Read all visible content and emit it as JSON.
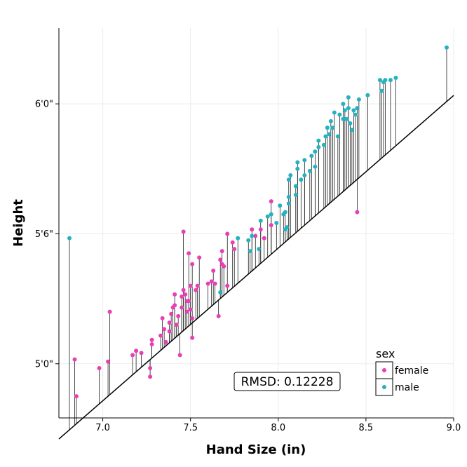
{
  "chart_data": {
    "type": "scatter",
    "xlabel": "Hand Size (in)",
    "ylabel": "Height",
    "xlim": [
      6.75,
      9.0
    ],
    "ylim": [
      57.5,
      75.5
    ],
    "x_ticks": [
      {
        "value": 7.0,
        "label": "7.0"
      },
      {
        "value": 7.5,
        "label": "7.5"
      },
      {
        "value": 8.0,
        "label": "8.0"
      },
      {
        "value": 8.5,
        "label": "8.5"
      },
      {
        "value": 9.0,
        "label": "9.0"
      }
    ],
    "y_ticks": [
      {
        "value": 60,
        "label": "5'0\""
      },
      {
        "value": 66,
        "label": "5'6\""
      },
      {
        "value": 72,
        "label": "6'0\""
      }
    ],
    "grid": true,
    "regression_line": {
      "intercept": 8.94,
      "slope": 7.05
    },
    "residual_segments": true,
    "annotation": "RMSD: 0.12228",
    "legend": {
      "title": "sex",
      "position": "bottom-right",
      "entries": [
        {
          "label": "female",
          "color": "#e83fb5"
        },
        {
          "label": "male",
          "color": "#26b1c0"
        }
      ]
    },
    "series": [
      {
        "name": "female",
        "color": "#e83fb5",
        "points": [
          [
            6.84,
            60.2
          ],
          [
            6.85,
            58.5
          ],
          [
            6.98,
            59.8
          ],
          [
            7.03,
            60.1
          ],
          [
            7.04,
            62.4
          ],
          [
            7.17,
            60.4
          ],
          [
            7.19,
            60.6
          ],
          [
            7.22,
            60.5
          ],
          [
            7.27,
            59.8
          ],
          [
            7.27,
            59.4
          ],
          [
            7.28,
            60.9
          ],
          [
            7.28,
            61.1
          ],
          [
            7.33,
            61.3
          ],
          [
            7.34,
            62.1
          ],
          [
            7.35,
            61.6
          ],
          [
            7.36,
            61.0
          ],
          [
            7.38,
            61.9
          ],
          [
            7.38,
            61.5
          ],
          [
            7.39,
            62.3
          ],
          [
            7.4,
            62.6
          ],
          [
            7.41,
            63.2
          ],
          [
            7.41,
            62.7
          ],
          [
            7.42,
            61.8
          ],
          [
            7.43,
            62.2
          ],
          [
            7.44,
            60.4
          ],
          [
            7.45,
            63.1
          ],
          [
            7.45,
            62.6
          ],
          [
            7.46,
            66.1
          ],
          [
            7.46,
            63.4
          ],
          [
            7.47,
            63.2
          ],
          [
            7.48,
            62.9
          ],
          [
            7.48,
            62.4
          ],
          [
            7.49,
            62.9
          ],
          [
            7.49,
            65.1
          ],
          [
            7.5,
            63.6
          ],
          [
            7.5,
            62.5
          ],
          [
            7.51,
            61.2
          ],
          [
            7.51,
            62.1
          ],
          [
            7.51,
            64.6
          ],
          [
            7.53,
            63.4
          ],
          [
            7.54,
            63.6
          ],
          [
            7.55,
            64.9
          ],
          [
            7.6,
            63.7
          ],
          [
            7.62,
            63.8
          ],
          [
            7.63,
            64.3
          ],
          [
            7.64,
            63.7
          ],
          [
            7.66,
            62.2
          ],
          [
            7.67,
            64.8
          ],
          [
            7.68,
            65.2
          ],
          [
            7.68,
            64.6
          ],
          [
            7.69,
            64.5
          ],
          [
            7.71,
            63.6
          ],
          [
            7.71,
            66.0
          ],
          [
            7.74,
            65.6
          ],
          [
            7.75,
            65.3
          ],
          [
            7.85,
            66.2
          ],
          [
            7.87,
            65.9
          ],
          [
            7.9,
            66.2
          ],
          [
            7.92,
            65.8
          ],
          [
            7.96,
            66.4
          ],
          [
            7.96,
            67.5
          ],
          [
            8.45,
            67.0
          ]
        ]
      },
      {
        "name": "male",
        "color": "#26b1c0",
        "points": [
          [
            6.81,
            65.8
          ],
          [
            7.67,
            63.3
          ],
          [
            7.77,
            65.8
          ],
          [
            7.83,
            65.7
          ],
          [
            7.84,
            65.2
          ],
          [
            7.85,
            65.9
          ],
          [
            7.89,
            65.3
          ],
          [
            7.9,
            66.6
          ],
          [
            7.94,
            66.8
          ],
          [
            7.96,
            66.9
          ],
          [
            7.99,
            66.5
          ],
          [
            8.01,
            67.3
          ],
          [
            8.03,
            66.9
          ],
          [
            8.04,
            66.2
          ],
          [
            8.04,
            67.0
          ],
          [
            8.05,
            66.3
          ],
          [
            8.06,
            67.4
          ],
          [
            8.06,
            67.7
          ],
          [
            8.06,
            68.5
          ],
          [
            8.07,
            68.7
          ],
          [
            8.1,
            67.8
          ],
          [
            8.1,
            68.2
          ],
          [
            8.11,
            69.0
          ],
          [
            8.11,
            69.3
          ],
          [
            8.13,
            68.5
          ],
          [
            8.15,
            69.4
          ],
          [
            8.15,
            68.7
          ],
          [
            8.18,
            68.9
          ],
          [
            8.19,
            69.6
          ],
          [
            8.21,
            69.1
          ],
          [
            8.21,
            69.8
          ],
          [
            8.23,
            70.0
          ],
          [
            8.23,
            70.3
          ],
          [
            8.26,
            70.1
          ],
          [
            8.27,
            70.5
          ],
          [
            8.28,
            70.9
          ],
          [
            8.29,
            70.6
          ],
          [
            8.3,
            71.2
          ],
          [
            8.31,
            70.9
          ],
          [
            8.32,
            71.6
          ],
          [
            8.34,
            70.5
          ],
          [
            8.35,
            71.5
          ],
          [
            8.37,
            71.3
          ],
          [
            8.37,
            72.0
          ],
          [
            8.38,
            71.7
          ],
          [
            8.39,
            71.3
          ],
          [
            8.4,
            71.8
          ],
          [
            8.4,
            72.3
          ],
          [
            8.41,
            71.1
          ],
          [
            8.42,
            70.8
          ],
          [
            8.43,
            71.7
          ],
          [
            8.44,
            71.5
          ],
          [
            8.45,
            71.8
          ],
          [
            8.46,
            72.2
          ],
          [
            8.51,
            72.4
          ],
          [
            8.58,
            73.1
          ],
          [
            8.59,
            72.6
          ],
          [
            8.6,
            73.0
          ],
          [
            8.61,
            73.1
          ],
          [
            8.64,
            73.1
          ],
          [
            8.67,
            73.2
          ],
          [
            8.96,
            74.6
          ]
        ]
      }
    ]
  }
}
